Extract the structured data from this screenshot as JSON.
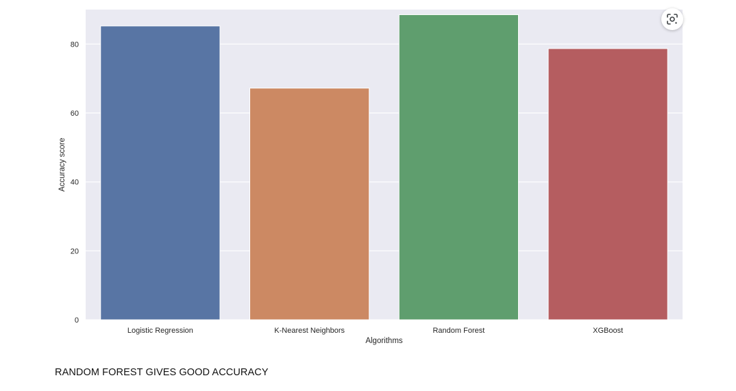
{
  "chart_data": {
    "type": "bar",
    "categories": [
      "Logistic Regression",
      "K-Nearest Neighbors",
      "Random Forest",
      "XGBoost"
    ],
    "values": [
      85.25,
      67.21,
      88.52,
      78.69
    ],
    "colors": [
      "#5875a4",
      "#cc8963",
      "#5f9e6e",
      "#b55d60"
    ],
    "xlabel": "Algorithms",
    "ylabel": "Accuracy score",
    "ylim": [
      0,
      90
    ],
    "yticks": [
      0,
      20,
      40,
      60,
      80
    ],
    "grid": true,
    "background_color": "#eaeaf2",
    "grid_color": "#ffffff"
  },
  "overlay": {
    "lens_icon": "google-lens-icon"
  },
  "caption": "RANDOM FOREST GIVES GOOD ACCURACY"
}
